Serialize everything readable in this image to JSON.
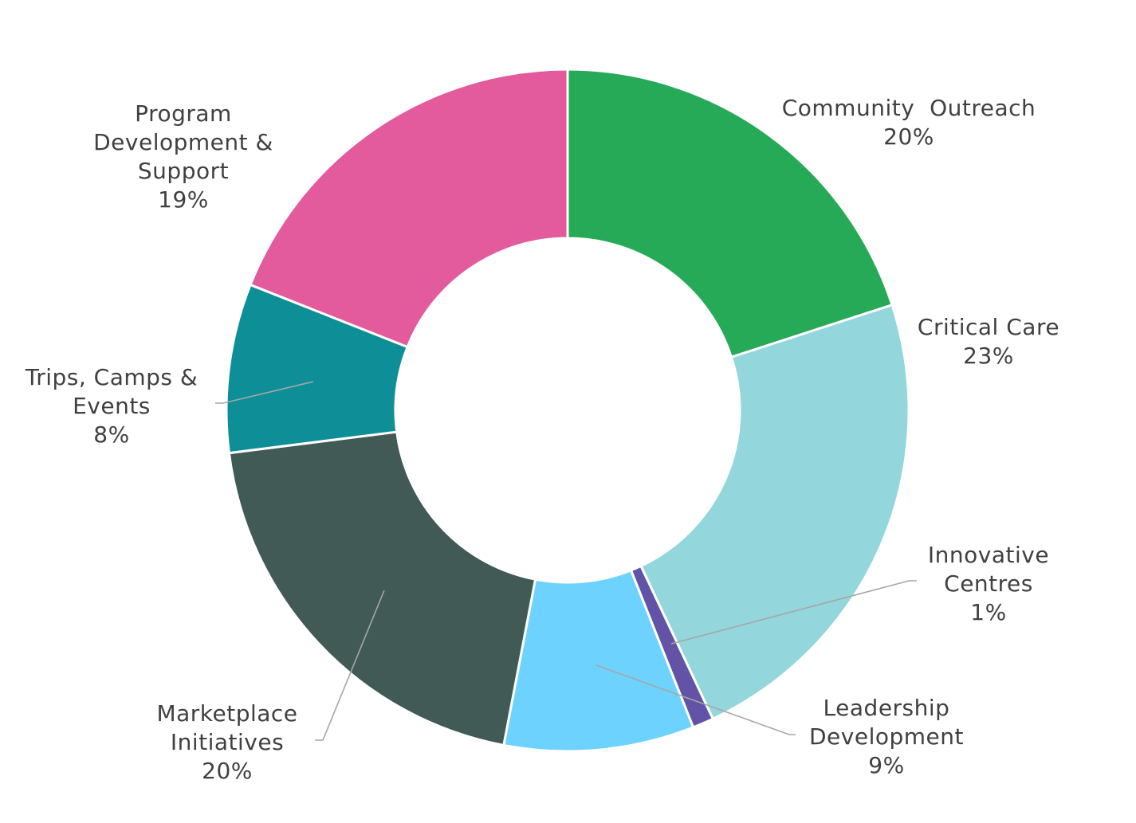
{
  "chart_data": {
    "type": "pie",
    "donut": true,
    "legend": "none",
    "slices": [
      {
        "name": "Community Outreach",
        "value": 20,
        "label_lines": [
          "Community  Outreach"
        ],
        "pct_text": "20%",
        "color": "#27AA57"
      },
      {
        "name": "Critical Care",
        "value": 23,
        "label_lines": [
          "Critical Care"
        ],
        "pct_text": "23%",
        "color": "#93D7DC"
      },
      {
        "name": "Innovative Centres",
        "value": 1,
        "label_lines": [
          "Innovative",
          "Centres"
        ],
        "pct_text": "1%",
        "color": "#6253A6"
      },
      {
        "name": "Leadership Development",
        "value": 9,
        "label_lines": [
          "Leadership",
          "Development"
        ],
        "pct_text": "9%",
        "color": "#6DD3FE"
      },
      {
        "name": "Marketplace Initiatives",
        "value": 20,
        "label_lines": [
          "Marketplace",
          "Initiatives"
        ],
        "pct_text": "20%",
        "color": "#415A56"
      },
      {
        "name": "Trips, Camps & Events",
        "value": 8,
        "label_lines": [
          "Trips, Camps &",
          "Events"
        ],
        "pct_text": "8%",
        "color": "#0E8F98"
      },
      {
        "name": "Program Development & Support",
        "value": 19,
        "label_lines": [
          "Program",
          "Development &",
          "Support"
        ],
        "pct_text": "19%",
        "color": "#E35A9D"
      }
    ]
  }
}
